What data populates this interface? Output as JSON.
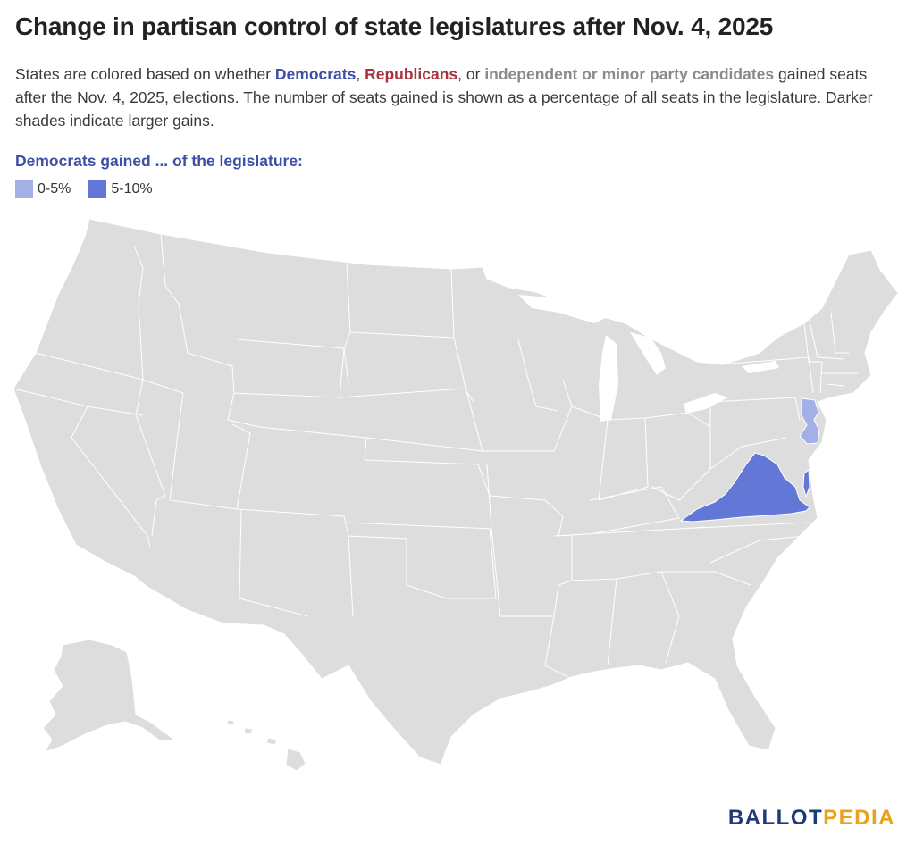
{
  "title": "Change in partisan control of state legislatures after Nov. 4, 2025",
  "subtitle": {
    "p1": "States are colored based on whether ",
    "dem": "Democrats",
    "p2": ", ",
    "rep": "Republicans",
    "p3": ", or ",
    "ind": "independent or minor party candidates",
    "p4": " gained seats after the Nov. 4, 2025, elections. The number of seats gained is shown as a percentage of all seats in the legislature. Darker shades indicate larger gains."
  },
  "legend": {
    "title": "Democrats gained ... of the legislature:",
    "items": [
      {
        "label": "0-5%",
        "color": "#a3b0e6"
      },
      {
        "label": "5-10%",
        "color": "#6377d6"
      }
    ]
  },
  "colors": {
    "base_state": "#dddddd",
    "border": "#ffffff"
  },
  "highlighted_states": [
    {
      "state": "New Jersey",
      "category": "0-5%"
    },
    {
      "state": "Virginia",
      "category": "5-10%"
    }
  ],
  "brand": {
    "part1": "BALLOT",
    "part2": "PEDIA"
  }
}
